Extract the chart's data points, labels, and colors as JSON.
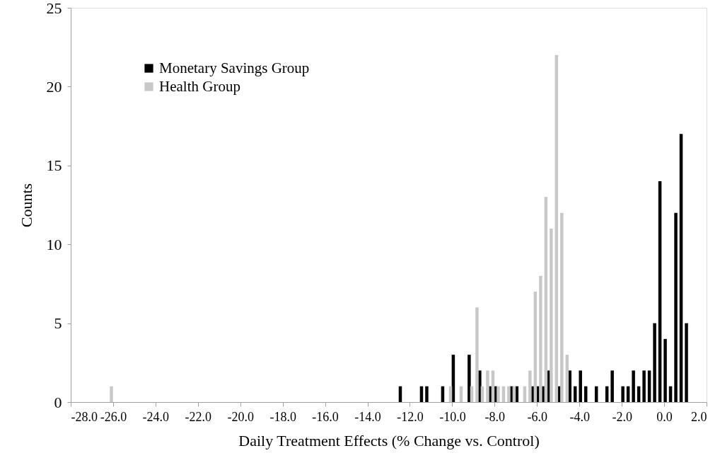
{
  "chart_data": {
    "type": "bar",
    "xlabel": "Daily Treatment Effects (% Change vs. Control)",
    "ylabel": "Counts",
    "series": [
      {
        "name": "Monetary Savings Group",
        "color": "#000000",
        "x": [
          -12.45,
          -11.45,
          -11.2,
          -10.45,
          -9.95,
          -9.2,
          -8.7,
          -8.2,
          -7.95,
          -7.2,
          -6.95,
          -6.2,
          -5.95,
          -5.7,
          -5.45,
          -4.95,
          -4.45,
          -4.2,
          -3.95,
          -3.7,
          -3.2,
          -2.7,
          -2.45,
          -1.95,
          -1.7,
          -1.45,
          -1.2,
          -0.95,
          -0.7,
          -0.45,
          -0.2,
          0.05,
          0.3,
          0.55,
          0.8,
          1.05
        ],
        "values": [
          1,
          1,
          1,
          1,
          3,
          3,
          2,
          1,
          1,
          1,
          1,
          1,
          1,
          1,
          2,
          1,
          2,
          1,
          2,
          1,
          1,
          1,
          2,
          1,
          1,
          2,
          1,
          2,
          2,
          5,
          14,
          4,
          1,
          12,
          17,
          5
        ]
      },
      {
        "name": "Health Group",
        "color": "#c8c8c8",
        "x": [
          -26.08,
          -10.08,
          -9.58,
          -9.08,
          -8.83,
          -8.58,
          -8.33,
          -8.08,
          -7.83,
          -7.58,
          -7.33,
          -7.08,
          -6.58,
          -6.33,
          -6.08,
          -5.83,
          -5.58,
          -5.33,
          -5.08,
          -4.83,
          -4.58
        ],
        "values": [
          1,
          1,
          1,
          1,
          6,
          1,
          2,
          2,
          1,
          1,
          1,
          1,
          1,
          2,
          7,
          8,
          13,
          11,
          22,
          12,
          3
        ]
      }
    ],
    "xlim": [
      -28,
      2
    ],
    "xticks": [
      {
        "value": -28,
        "label": "-28.0"
      },
      {
        "value": -26,
        "label": "-26.0"
      },
      {
        "value": -24,
        "label": "-24.0"
      },
      {
        "value": -22,
        "label": "-22.0"
      },
      {
        "value": -20,
        "label": "-20.0"
      },
      {
        "value": -18,
        "label": "-18.0"
      },
      {
        "value": -16,
        "label": "-16.0"
      },
      {
        "value": -14,
        "label": "-14.0"
      },
      {
        "value": -12,
        "label": "-12.0"
      },
      {
        "value": -10,
        "label": "-10.0"
      },
      {
        "value": -8,
        "label": "-8.0"
      },
      {
        "value": -6,
        "label": "-6.0"
      },
      {
        "value": -4,
        "label": "-4.0"
      },
      {
        "value": -2,
        "label": "-2.0"
      },
      {
        "value": 0,
        "label": "0.0"
      },
      {
        "value": 2,
        "label": "2.0"
      }
    ],
    "ylim": [
      0,
      25
    ],
    "yticks": [
      0,
      5,
      10,
      15,
      20,
      25
    ],
    "grid": false,
    "legend": "top left"
  }
}
